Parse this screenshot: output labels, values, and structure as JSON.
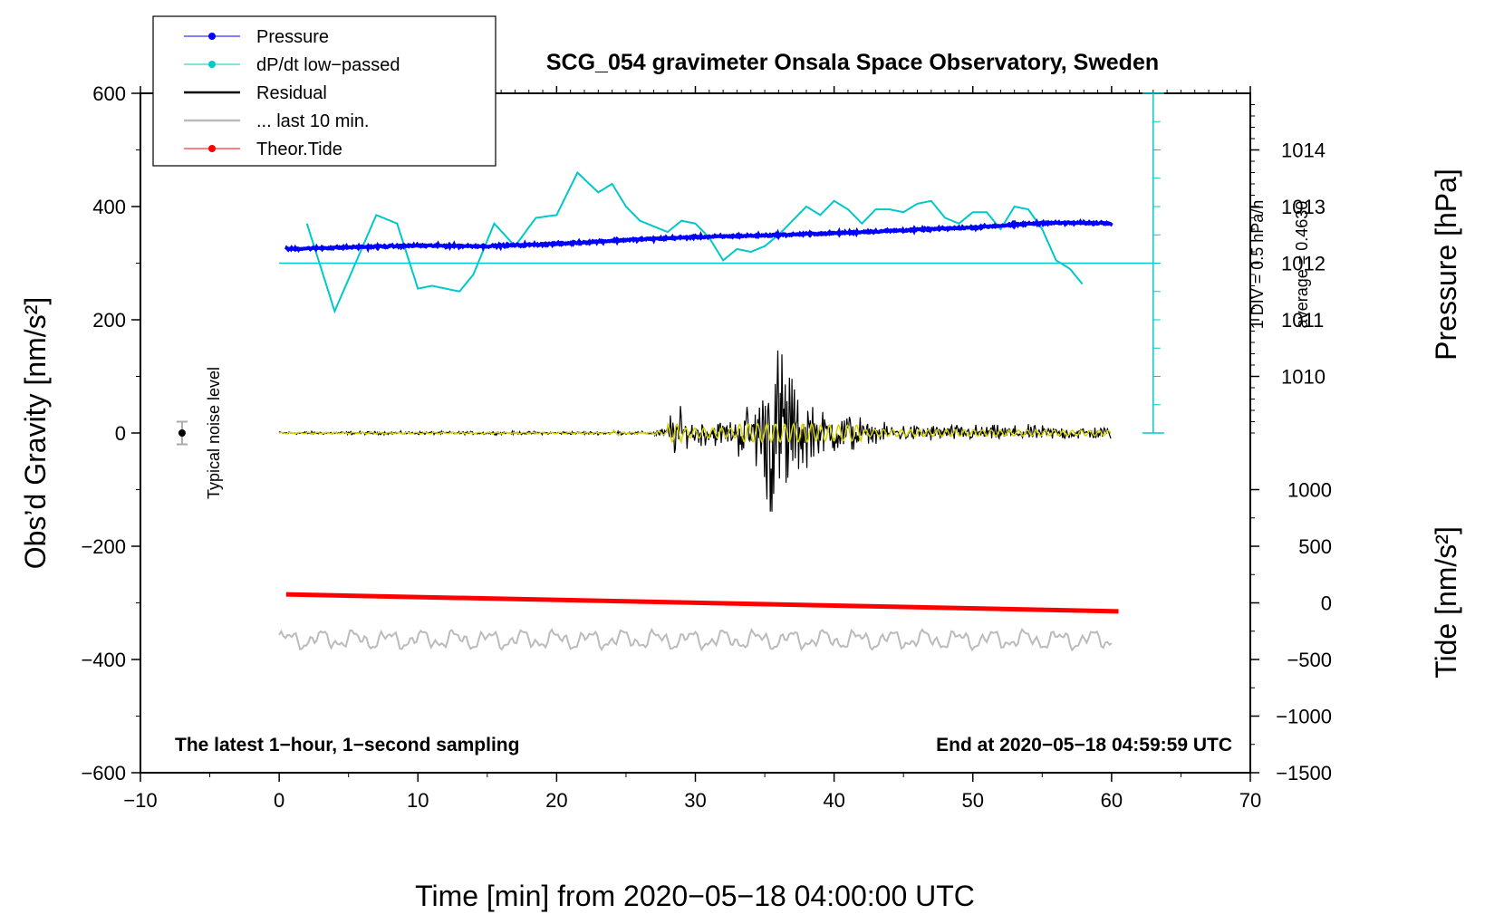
{
  "chart_data": {
    "type": "line",
    "title": "SCG_054 gravimeter Onsala Space Observatory, Sweden",
    "xlabel": "Time [min] from 2020−05−18 04:00:00 UTC",
    "ylabel_left": "Obs’d Gravity [nm/s²]",
    "ylabel_pressure": "Pressure [hPa]",
    "ylabel_tide": "Tide [nm/s²]",
    "xlim": [
      -10,
      70
    ],
    "ylim_left": [
      -600,
      600
    ],
    "x_ticks": [
      -10,
      0,
      10,
      20,
      30,
      40,
      50,
      60,
      70
    ],
    "x_tick_labels": [
      "−10",
      "0",
      "10",
      "20",
      "30",
      "40",
      "50",
      "60",
      "70"
    ],
    "y_ticks_left": [
      600,
      400,
      200,
      0,
      -200,
      -400,
      -600
    ],
    "y_tick_labels_left": [
      "600",
      "400",
      "200",
      "0",
      "−200",
      "−400",
      "−600"
    ],
    "pressure_axis": {
      "ticks": [
        1010,
        1011,
        1012,
        1013,
        1014
      ],
      "labels": [
        "1010",
        "1011",
        "1012",
        "1013",
        "1014"
      ],
      "gravity_at_1012": 300,
      "gravity_per_hPa": 100
    },
    "tide_axis": {
      "ticks": [
        1000,
        500,
        0,
        -500,
        -1000,
        -1500
      ],
      "labels": [
        "1000",
        "500",
        "0",
        "−500",
        "−1000",
        "−1500"
      ],
      "gravity_at_0": -300,
      "gravity_per_unit": 0.2
    },
    "dpdt_scale": {
      "label_div": "1 DIV = 0.5 hPa/h",
      "label_avg": "average = 0.4630",
      "baseline_gravity": 300,
      "divisions": 12
    },
    "legend": [
      {
        "label": "Pressure",
        "color": "#0000ff",
        "marker": true
      },
      {
        "label": "dP/dt low−passed",
        "color": "#00c8c8",
        "marker": true
      },
      {
        "label": "Residual",
        "color": "#000000",
        "marker": false
      },
      {
        "label": "... last 10 min.",
        "color": "#bbbbbb",
        "marker": false
      },
      {
        "label": "Theor.Tide",
        "color": "#ff0000",
        "marker": true
      }
    ],
    "series": [
      {
        "name": "Pressure",
        "color": "#0000ff",
        "x": [
          0.5,
          5,
          10,
          15,
          20,
          25,
          30,
          35,
          40,
          45,
          50,
          55,
          60
        ],
        "y": [
          325,
          328,
          331,
          330,
          334,
          341,
          346,
          349,
          353,
          358,
          363,
          371,
          371
        ]
      },
      {
        "name": "dP/dt low-passed",
        "color": "#00c8c8",
        "x": [
          2,
          4,
          5.5,
          7,
          8.5,
          10,
          11,
          12,
          13,
          14,
          15.5,
          17,
          18.5,
          20,
          21.5,
          23,
          24,
          25,
          26,
          27,
          28,
          29,
          30,
          31,
          32,
          33,
          34,
          35,
          36,
          37,
          38,
          39,
          40,
          41,
          42,
          43,
          44,
          45,
          46,
          47,
          48,
          49,
          50,
          51,
          52,
          53,
          54,
          55,
          56,
          57,
          58
        ],
        "y": [
          370,
          215,
          300,
          385,
          370,
          255,
          260,
          255,
          250,
          280,
          370,
          330,
          380,
          385,
          460,
          425,
          440,
          400,
          375,
          365,
          355,
          375,
          370,
          345,
          305,
          325,
          320,
          330,
          350,
          375,
          400,
          385,
          410,
          395,
          370,
          395,
          395,
          390,
          405,
          410,
          380,
          370,
          390,
          390,
          360,
          400,
          395,
          360,
          305,
          290,
          260
        ]
      },
      {
        "name": "Residual",
        "color": "#000000",
        "x_start": 0,
        "x_end": 60
      },
      {
        "name": "... last 10 min.",
        "color": "#bbbbbb",
        "x_start": 0,
        "x_end": 60,
        "center": -365
      },
      {
        "name": "Theor.Tide",
        "color": "#ff0000",
        "x": [
          0.5,
          60.5
        ],
        "y": [
          -285,
          -315
        ]
      }
    ],
    "noise_marker": {
      "label": "Typical noise level",
      "x": -7,
      "y": 0,
      "error": 20
    },
    "annotations": {
      "left_note": "The latest 1−hour, 1−second sampling",
      "right_note": "End at 2020−05−18 04:59:59 UTC"
    }
  }
}
